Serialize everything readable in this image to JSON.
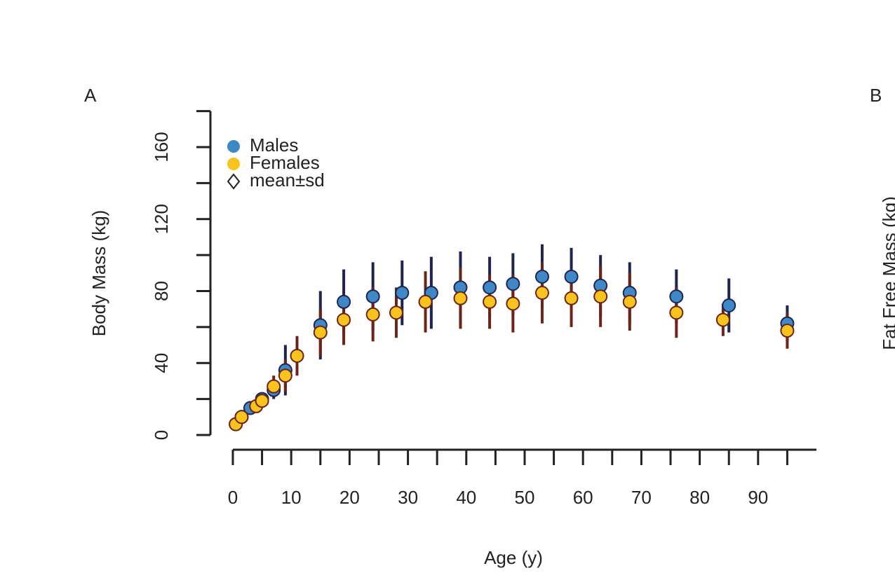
{
  "chart_data": {
    "type": "scatter",
    "panel_label": "A",
    "next_panel_label": "B",
    "next_panel_ylabel": "Fat Free Mass (kg)",
    "xlabel": "Age (y)",
    "ylabel": "Body Mass (kg)",
    "xlim": [
      -4,
      100
    ],
    "xticks": [
      0,
      10,
      20,
      30,
      40,
      50,
      60,
      70,
      80,
      90
    ],
    "xminorticks": [
      5,
      15,
      25,
      35,
      45,
      55,
      65,
      75,
      85,
      95
    ],
    "ylim": [
      0,
      180
    ],
    "yticks": [
      0,
      40,
      80,
      120,
      160
    ],
    "yminorticks": [
      20,
      60,
      100,
      140,
      180
    ],
    "legend_stat": "mean±sd",
    "series": [
      {
        "name": "Males",
        "color": "#3f88c8",
        "bar_color": "#1f2550",
        "x": [
          0.5,
          1.5,
          3,
          5,
          7,
          9,
          15,
          19,
          24,
          29,
          34,
          39,
          44,
          48,
          53,
          58,
          63,
          68,
          76,
          85,
          95
        ],
        "values": [
          6,
          10,
          15,
          20,
          25,
          36,
          61,
          74,
          77,
          79,
          79,
          82,
          82,
          84,
          88,
          88,
          83,
          79,
          77,
          72,
          62
        ],
        "sd": [
          1,
          2,
          2,
          3,
          5,
          14,
          19,
          18,
          19,
          18,
          20,
          20,
          17,
          17,
          18,
          16,
          17,
          17,
          15,
          15,
          10
        ]
      },
      {
        "name": "Females",
        "color": "#f7c31c",
        "bar_color": "#6b2418",
        "x": [
          0.5,
          1.5,
          4,
          5,
          7,
          9,
          11,
          15,
          19,
          24,
          28,
          33,
          39,
          44,
          48,
          53,
          58,
          63,
          68,
          76,
          84,
          95
        ],
        "values": [
          6,
          10,
          16,
          19,
          27,
          33,
          44,
          57,
          64,
          67,
          68,
          74,
          76,
          74,
          73,
          79,
          76,
          77,
          74,
          68,
          64,
          58
        ],
        "sd": [
          1,
          1,
          2,
          3,
          6,
          9,
          11,
          13,
          14,
          15,
          14,
          17,
          17,
          15,
          16,
          17,
          16,
          17,
          16,
          14,
          9,
          10
        ]
      }
    ]
  }
}
